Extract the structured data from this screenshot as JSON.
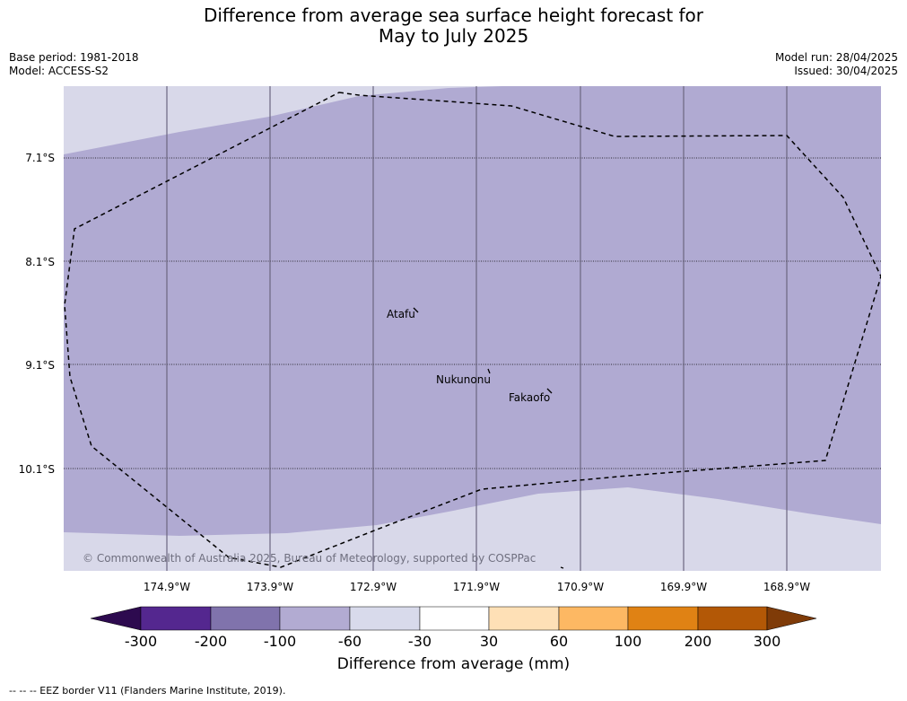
{
  "title": {
    "line1": "Difference from average sea surface height forecast for",
    "line2": "May to July 2025"
  },
  "meta": {
    "base_period": "Base period: 1981-2018",
    "model": "Model: ACCESS-S2",
    "model_run": "Model run: 28/04/2025",
    "issued": "Issued: 30/04/2025"
  },
  "map": {
    "lat_labels": [
      "7.1°S",
      "8.1°S",
      "9.1°S",
      "10.1°S"
    ],
    "lon_labels": [
      "174.9°W",
      "173.9°W",
      "172.9°W",
      "171.9°W",
      "170.9°W",
      "169.9°W",
      "168.9°W"
    ],
    "places": [
      "Atafu",
      "Nukunonu",
      "Fakaofo"
    ],
    "copyright": "© Commonwealth of Australia 2025, Bureau of Meteorology, supported by COSPPac",
    "field_colors": {
      "minus100_to_minus60": "#b0aad2",
      "minus60_to_minus30": "#d8d8e9"
    }
  },
  "colorbar": {
    "title": "Difference from average (mm)",
    "ticks": [
      "-300",
      "-200",
      "-100",
      "-60",
      "-30",
      "30",
      "60",
      "100",
      "200",
      "300"
    ],
    "colors": [
      "#2d0a4f",
      "#54278f",
      "#8073ac",
      "#b2abd2",
      "#d8daeb",
      "#ffffff",
      "#fee0b6",
      "#fdb863",
      "#e08214",
      "#b35806",
      "#7f3b08"
    ]
  },
  "footer": "--  --  -- EEZ border V11 (Flanders Marine Institute, 2019)."
}
